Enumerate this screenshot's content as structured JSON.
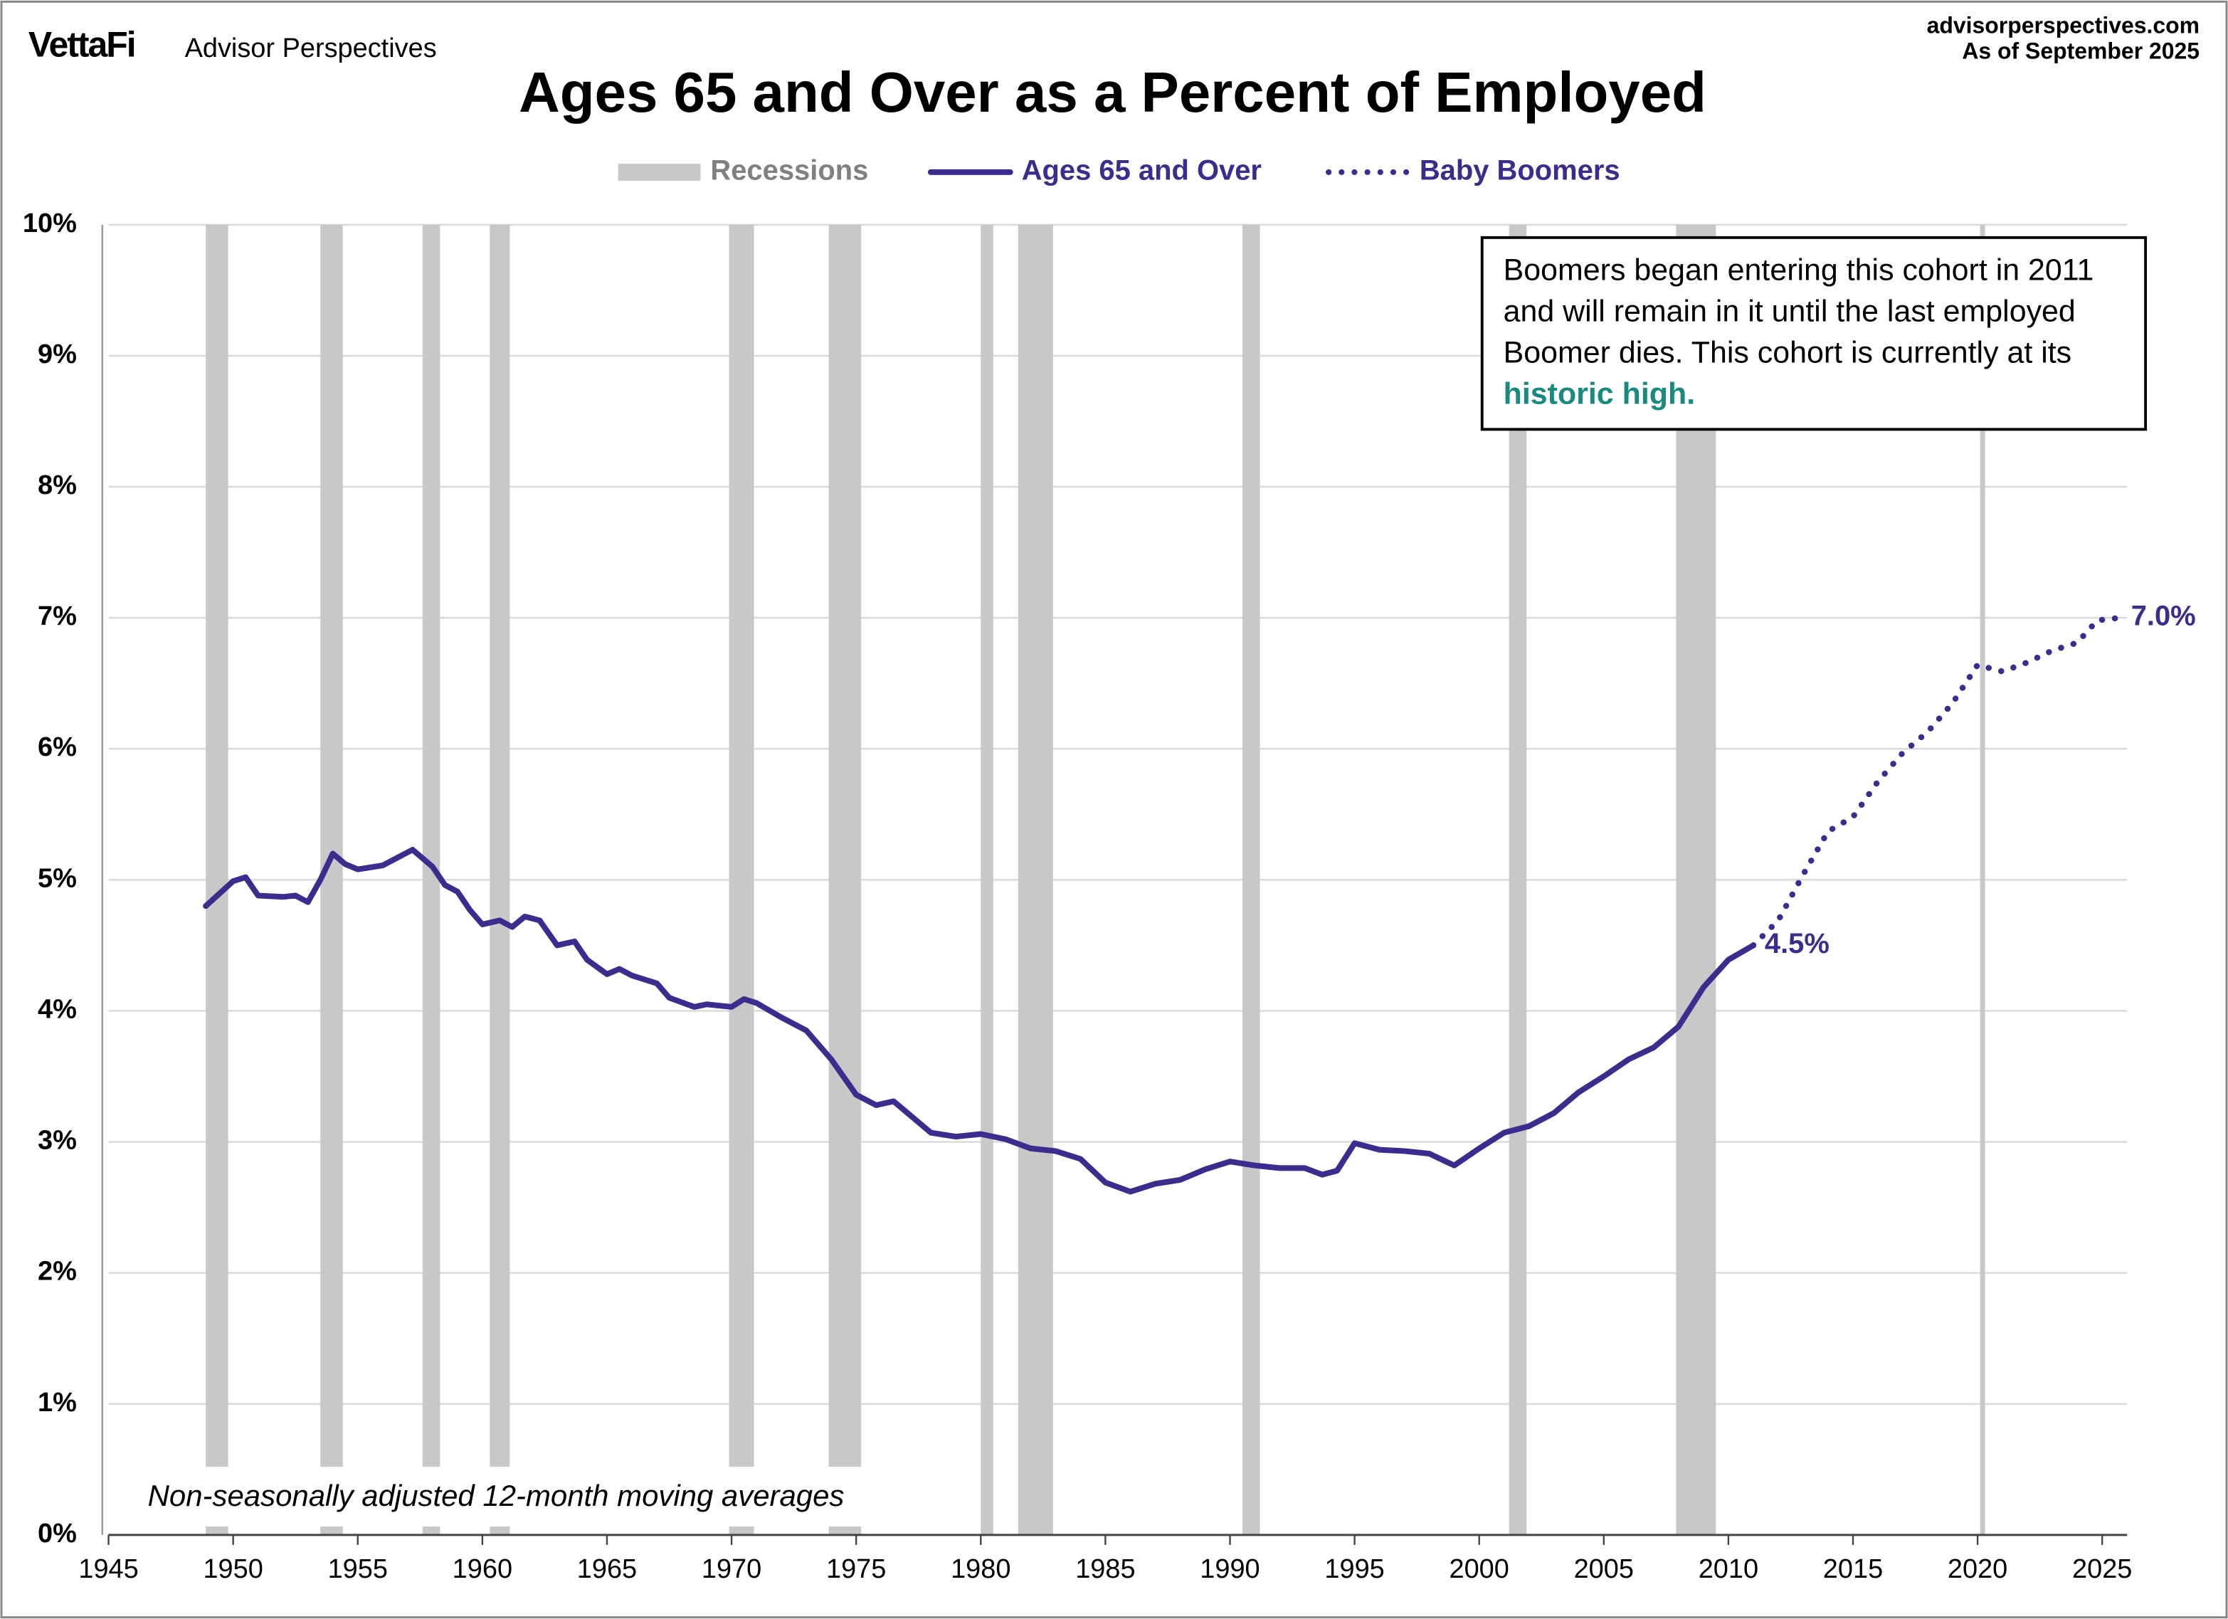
{
  "brand": "VettaFi",
  "brand_sub": "Advisor Perspectives",
  "source": "advisorperspectives.com",
  "as_of": "As of September 2025",
  "chart_data": {
    "type": "line",
    "title": "Ages 65 and Over as a Percent of Employed",
    "recession_label": "Recessions",
    "recession_color": "#c8c8c8",
    "recessions": [
      [
        1948.9,
        1949.8
      ],
      [
        1953.5,
        1954.4
      ],
      [
        1957.6,
        1958.3
      ],
      [
        1960.3,
        1961.1
      ],
      [
        1969.9,
        1970.9
      ],
      [
        1973.9,
        1975.2
      ],
      [
        1980.0,
        1980.5
      ],
      [
        1981.5,
        1982.9
      ],
      [
        1990.5,
        1991.2
      ],
      [
        2001.2,
        2001.9
      ],
      [
        2007.9,
        2009.5
      ],
      [
        2020.1,
        2020.3
      ]
    ],
    "series": [
      {
        "name": "Ages 65 and Over",
        "color": "#3d2c8d",
        "style": "solid",
        "x": [
          1948.9,
          1950,
          1950.5,
          1951,
          1952,
          1952.5,
          1953,
          1953.5,
          1954,
          1954.5,
          1955,
          1956,
          1957.2,
          1958,
          1958.5,
          1959,
          1959.5,
          1960,
          1960.7,
          1961.2,
          1961.7,
          1962.3,
          1963,
          1963.7,
          1964.2,
          1965,
          1965.5,
          1966,
          1967,
          1967.5,
          1968.5,
          1969,
          1970,
          1970.5,
          1971,
          1972,
          1973,
          1974,
          1975,
          1975.8,
          1976.5,
          1977,
          1978,
          1979,
          1980,
          1981,
          1982,
          1983,
          1984,
          1985,
          1986,
          1987,
          1988,
          1989,
          1990,
          1991,
          1992,
          1993,
          1993.7,
          1994.3,
          1995,
          1996,
          1997,
          1998,
          1999,
          2000,
          2001,
          2002,
          2003,
          2004,
          2005,
          2006,
          2007,
          2008,
          2009,
          2010,
          2011
        ],
        "values": [
          4.8,
          4.99,
          5.02,
          4.88,
          4.87,
          4.88,
          4.83,
          5.0,
          5.2,
          5.12,
          5.08,
          5.11,
          5.23,
          5.1,
          4.96,
          4.91,
          4.77,
          4.66,
          4.69,
          4.64,
          4.72,
          4.69,
          4.5,
          4.53,
          4.39,
          4.28,
          4.32,
          4.27,
          4.21,
          4.1,
          4.03,
          4.05,
          4.03,
          4.09,
          4.06,
          3.95,
          3.85,
          3.63,
          3.36,
          3.28,
          3.31,
          3.23,
          3.07,
          3.04,
          3.06,
          3.02,
          2.95,
          2.93,
          2.87,
          2.69,
          2.62,
          2.68,
          2.71,
          2.79,
          2.85,
          2.82,
          2.8,
          2.8,
          2.75,
          2.78,
          2.99,
          2.94,
          2.93,
          2.91,
          2.82,
          2.95,
          3.07,
          3.12,
          3.22,
          3.38,
          3.5,
          3.63,
          3.72,
          3.88,
          4.18,
          4.39,
          4.5
        ],
        "value_labels": [
          null,
          null,
          null,
          null,
          null,
          null,
          null,
          null,
          null,
          null,
          null,
          null,
          null,
          null,
          null,
          null,
          null,
          null,
          null,
          null,
          null,
          null,
          null,
          null,
          null,
          null,
          null,
          null,
          null,
          null,
          null,
          null,
          null,
          null,
          null,
          null,
          null,
          null,
          null,
          null,
          null,
          null,
          null,
          null,
          null,
          null,
          null,
          null,
          null,
          null,
          null,
          null,
          null,
          null,
          null,
          null,
          null,
          null,
          null,
          null,
          null,
          null,
          null,
          null,
          null,
          null,
          null,
          null,
          null,
          null,
          null,
          null,
          null,
          null,
          null,
          null,
          "4.5%"
        ]
      },
      {
        "name": "Baby Boomers",
        "color": "#3d2c8d",
        "style": "dotted",
        "x": [
          2011,
          2012,
          2013,
          2014,
          2015,
          2016,
          2017,
          2018,
          2019,
          2020,
          2021,
          2022,
          2023,
          2024,
          2024.8,
          2025.7
        ],
        "values": [
          4.5,
          4.69,
          5.04,
          5.37,
          5.48,
          5.75,
          5.97,
          6.13,
          6.35,
          6.64,
          6.59,
          6.66,
          6.75,
          6.81,
          6.98,
          7.0
        ],
        "value_labels": [
          null,
          null,
          null,
          null,
          null,
          null,
          null,
          null,
          null,
          null,
          null,
          null,
          null,
          null,
          null,
          "7.0%"
        ]
      }
    ],
    "xlim": [
      1945,
      2026
    ],
    "xticks": [
      1945,
      1950,
      1955,
      1960,
      1965,
      1970,
      1975,
      1980,
      1985,
      1990,
      1995,
      2000,
      2005,
      2010,
      2015,
      2020,
      2025
    ],
    "ylim": [
      0,
      10
    ],
    "yticks": [
      {
        "value": 0,
        "label": "0%"
      },
      {
        "value": 1,
        "label": "1%"
      },
      {
        "value": 2,
        "label": "2%"
      },
      {
        "value": 3,
        "label": "3%"
      },
      {
        "value": 4,
        "label": "4%"
      },
      {
        "value": 5,
        "label": "5%"
      },
      {
        "value": 6,
        "label": "6%"
      },
      {
        "value": 7,
        "label": "7%"
      },
      {
        "value": 8,
        "label": "8%"
      },
      {
        "value": 9,
        "label": "9%"
      },
      {
        "value": 10,
        "label": "10%"
      }
    ],
    "grid": true,
    "note": "Non-seasonally adjusted  12-month moving averages",
    "annotation": {
      "text": "Boomers began entering this cohort in 2011 and will remain in it until the last employed Boomer dies. This cohort is currently at its",
      "highlight": "historic high."
    }
  }
}
